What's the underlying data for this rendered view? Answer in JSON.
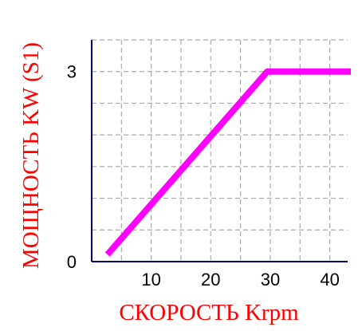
{
  "chart_data": {
    "type": "line",
    "title": "",
    "xlabel": "СКОРОСТЬ Krpm",
    "ylabel": "МОЩНОСТЬ KW (S1)",
    "xlim": [
      0,
      43
    ],
    "ylim": [
      0,
      3.5
    ],
    "x_ticks": [
      10,
      20,
      30,
      40
    ],
    "x_tick_labels": [
      "10",
      "20",
      "30",
      "40"
    ],
    "y_ticks": [
      0,
      3
    ],
    "y_tick_labels": [
      "0",
      "3"
    ],
    "grid": true,
    "grid_style": "dashed",
    "series": [
      {
        "x": [
          3,
          29.5,
          43
        ],
        "y": [
          0.15,
          3.0,
          3.0
        ]
      }
    ],
    "colors": {
      "line": "#ff00ff",
      "axis_title": "#ff0000",
      "axis": "#00007a",
      "grid": "#aaaaaa"
    }
  }
}
